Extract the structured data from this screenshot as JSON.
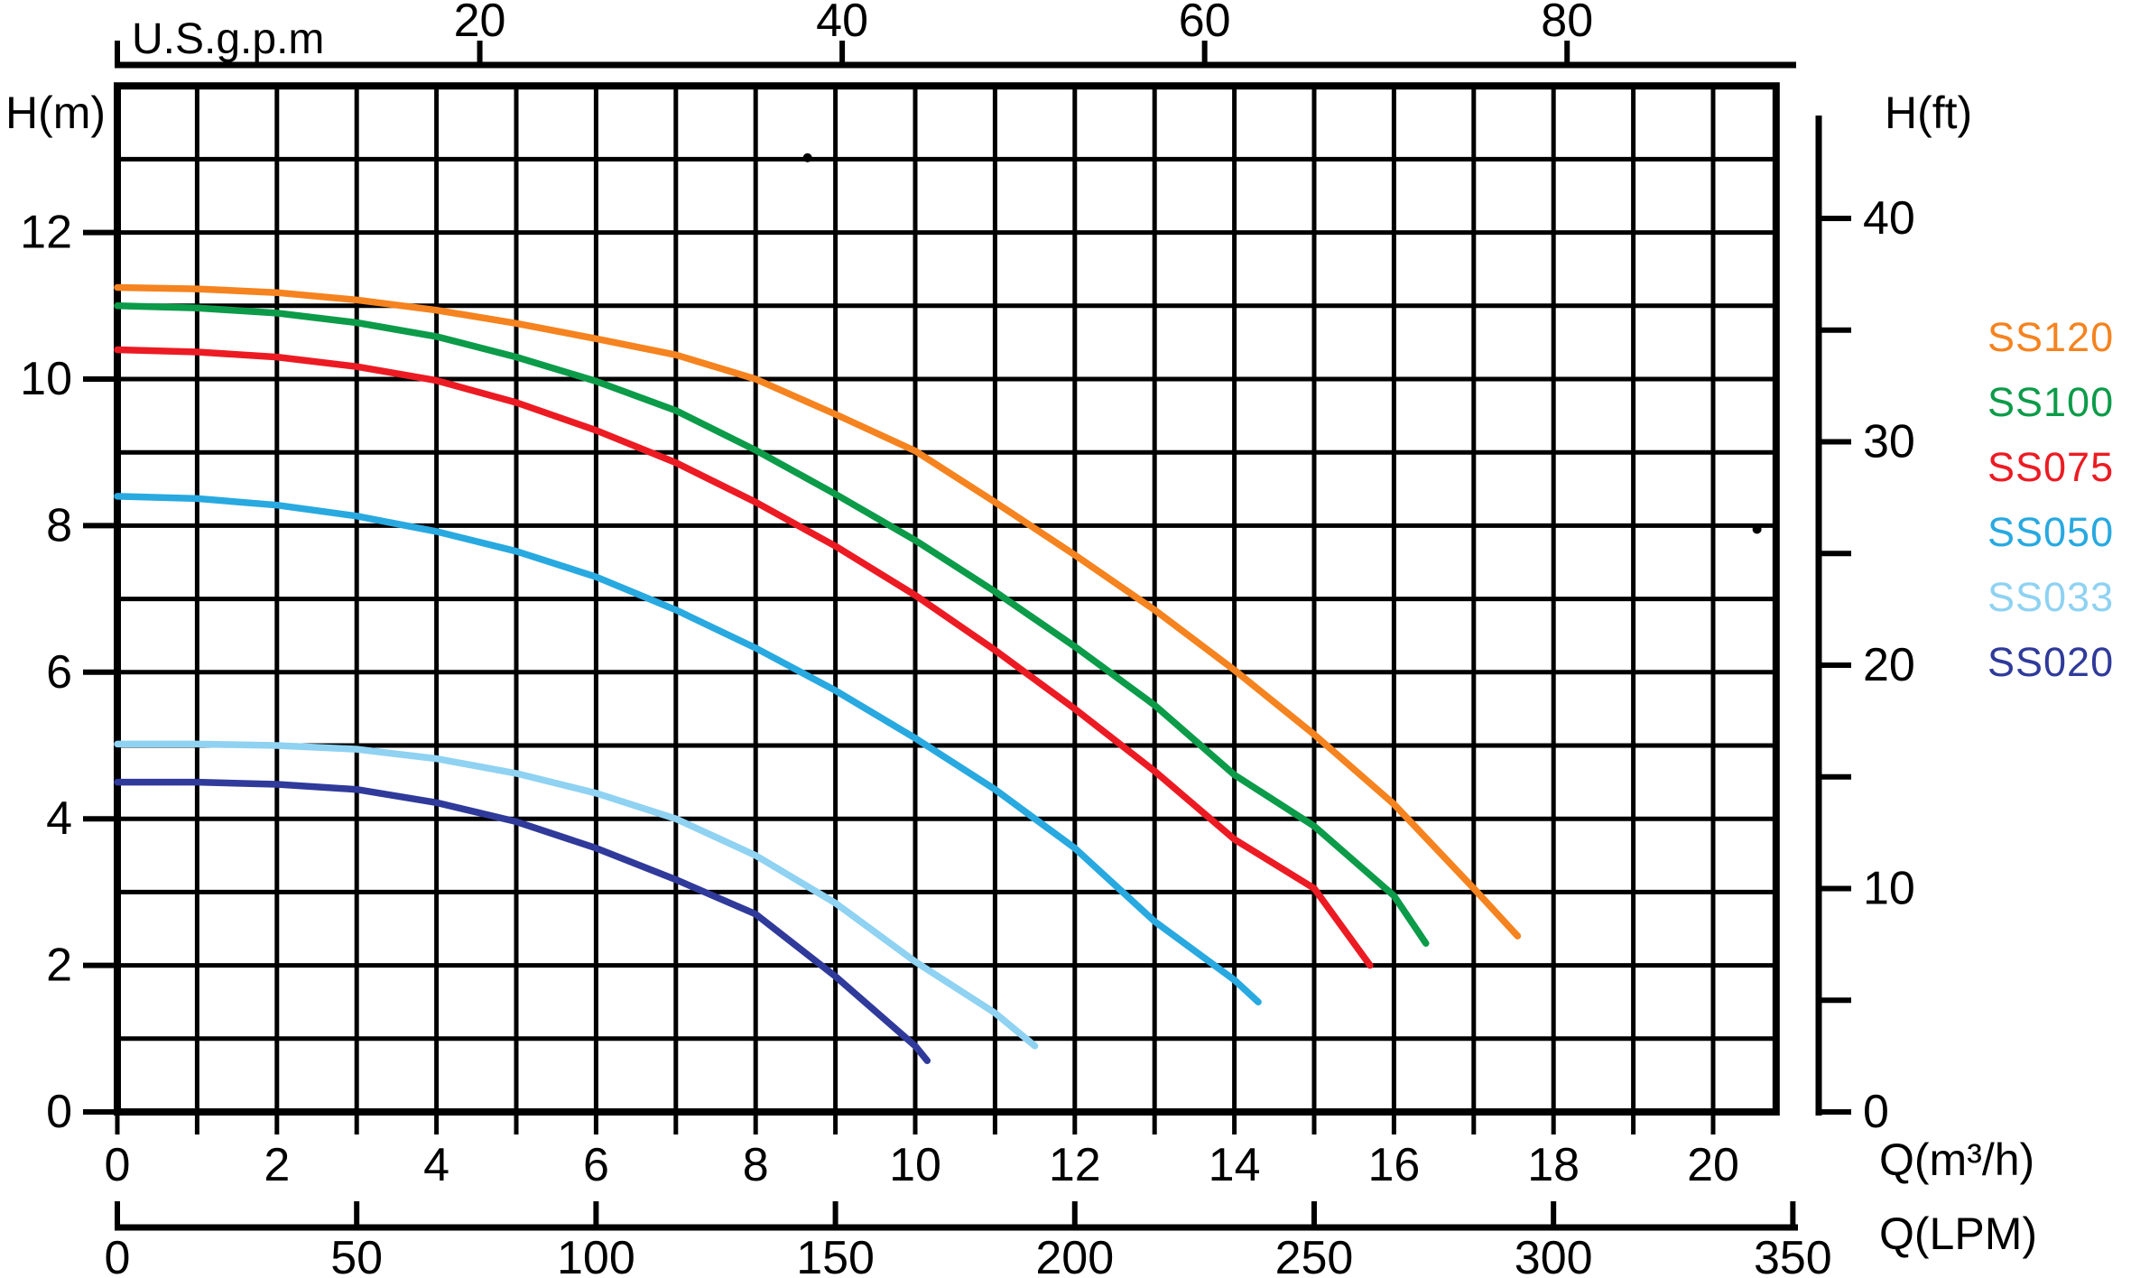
{
  "chart_data": {
    "type": "line",
    "title": "",
    "grid": true,
    "legend_position": "right",
    "axes": {
      "top": {
        "label": "U.S.g.p.m",
        "ticks": [
          20,
          40,
          60,
          80
        ],
        "gpm_per_m3h": 4.4029
      },
      "bottom_m3h": {
        "label": "Q(m³/h)",
        "labeled_ticks": [
          0,
          2,
          4,
          6,
          8,
          10,
          12,
          14,
          16,
          18,
          20
        ],
        "minor_tick_step": 1,
        "range": [
          0,
          20.8
        ]
      },
      "bottom_lpm": {
        "label": "Q(LPM)",
        "ticks": [
          0,
          50,
          100,
          150,
          200,
          250,
          300,
          350
        ],
        "lpm_per_m3h": 16.667
      },
      "left": {
        "label": "H(m)",
        "ticks": [
          0,
          2,
          4,
          6,
          8,
          10,
          12
        ],
        "range": [
          0,
          14
        ]
      },
      "right": {
        "label": "H(ft)",
        "labeled_ticks": [
          0,
          10,
          20,
          30,
          40
        ],
        "minor_tick_step": 5,
        "m_per_ft": 0.3048
      }
    },
    "series": [
      {
        "name": "SS120",
        "color": "#F5831F",
        "points": [
          [
            0,
            11.25
          ],
          [
            1,
            11.23
          ],
          [
            2,
            11.18
          ],
          [
            3,
            11.08
          ],
          [
            4,
            10.94
          ],
          [
            5,
            10.76
          ],
          [
            6,
            10.55
          ],
          [
            7,
            10.33
          ],
          [
            8,
            10.0
          ],
          [
            9,
            9.52
          ],
          [
            10,
            9.02
          ],
          [
            11,
            8.32
          ],
          [
            12,
            7.6
          ],
          [
            13,
            6.85
          ],
          [
            14,
            6.03
          ],
          [
            15,
            5.15
          ],
          [
            16,
            4.2
          ],
          [
            17,
            3.05
          ],
          [
            17.55,
            2.4
          ]
        ]
      },
      {
        "name": "SS100",
        "color": "#0C9B49",
        "points": [
          [
            0,
            11.0
          ],
          [
            1,
            10.97
          ],
          [
            2,
            10.9
          ],
          [
            3,
            10.77
          ],
          [
            4,
            10.58
          ],
          [
            5,
            10.3
          ],
          [
            6,
            9.97
          ],
          [
            7,
            9.57
          ],
          [
            8,
            9.03
          ],
          [
            9,
            8.43
          ],
          [
            10,
            7.8
          ],
          [
            11,
            7.1
          ],
          [
            12,
            6.35
          ],
          [
            13,
            5.55
          ],
          [
            14,
            4.6
          ],
          [
            15,
            3.9
          ],
          [
            16,
            2.95
          ],
          [
            16.4,
            2.3
          ]
        ]
      },
      {
        "name": "SS075",
        "color": "#EC1B23",
        "points": [
          [
            0,
            10.4
          ],
          [
            1,
            10.37
          ],
          [
            2,
            10.3
          ],
          [
            3,
            10.17
          ],
          [
            4,
            9.98
          ],
          [
            5,
            9.68
          ],
          [
            6,
            9.3
          ],
          [
            7,
            8.86
          ],
          [
            8,
            8.32
          ],
          [
            9,
            7.72
          ],
          [
            10,
            7.05
          ],
          [
            11,
            6.3
          ],
          [
            12,
            5.5
          ],
          [
            13,
            4.65
          ],
          [
            14,
            3.72
          ],
          [
            15,
            3.05
          ],
          [
            15.7,
            2.0
          ]
        ]
      },
      {
        "name": "SS050",
        "color": "#28A9E0",
        "points": [
          [
            0,
            8.4
          ],
          [
            1,
            8.37
          ],
          [
            2,
            8.28
          ],
          [
            3,
            8.13
          ],
          [
            4,
            7.92
          ],
          [
            5,
            7.65
          ],
          [
            6,
            7.3
          ],
          [
            7,
            6.85
          ],
          [
            8,
            6.33
          ],
          [
            9,
            5.75
          ],
          [
            10,
            5.1
          ],
          [
            11,
            4.4
          ],
          [
            12,
            3.6
          ],
          [
            13,
            2.6
          ],
          [
            14,
            1.8
          ],
          [
            14.3,
            1.5
          ]
        ]
      },
      {
        "name": "SS033",
        "color": "#8FD2F2",
        "points": [
          [
            0,
            5.02
          ],
          [
            1,
            5.02
          ],
          [
            2,
            5.0
          ],
          [
            3,
            4.95
          ],
          [
            4,
            4.82
          ],
          [
            5,
            4.62
          ],
          [
            6,
            4.35
          ],
          [
            7,
            4.0
          ],
          [
            8,
            3.5
          ],
          [
            9,
            2.85
          ],
          [
            10,
            2.05
          ],
          [
            11,
            1.35
          ],
          [
            11.5,
            0.9
          ]
        ]
      },
      {
        "name": "SS020",
        "color": "#2F3A9A",
        "points": [
          [
            0,
            4.5
          ],
          [
            1,
            4.5
          ],
          [
            2,
            4.47
          ],
          [
            3,
            4.4
          ],
          [
            4,
            4.22
          ],
          [
            5,
            3.96
          ],
          [
            6,
            3.6
          ],
          [
            7,
            3.17
          ],
          [
            8,
            2.7
          ],
          [
            9,
            1.85
          ],
          [
            10,
            0.9
          ],
          [
            10.15,
            0.7
          ]
        ]
      }
    ],
    "stray_dots": [
      {
        "q": 8.65,
        "h": 13.02
      },
      {
        "q": 20.55,
        "h": 7.95
      }
    ],
    "ink_color": "#000000",
    "background_color": "#FFFFFF"
  }
}
